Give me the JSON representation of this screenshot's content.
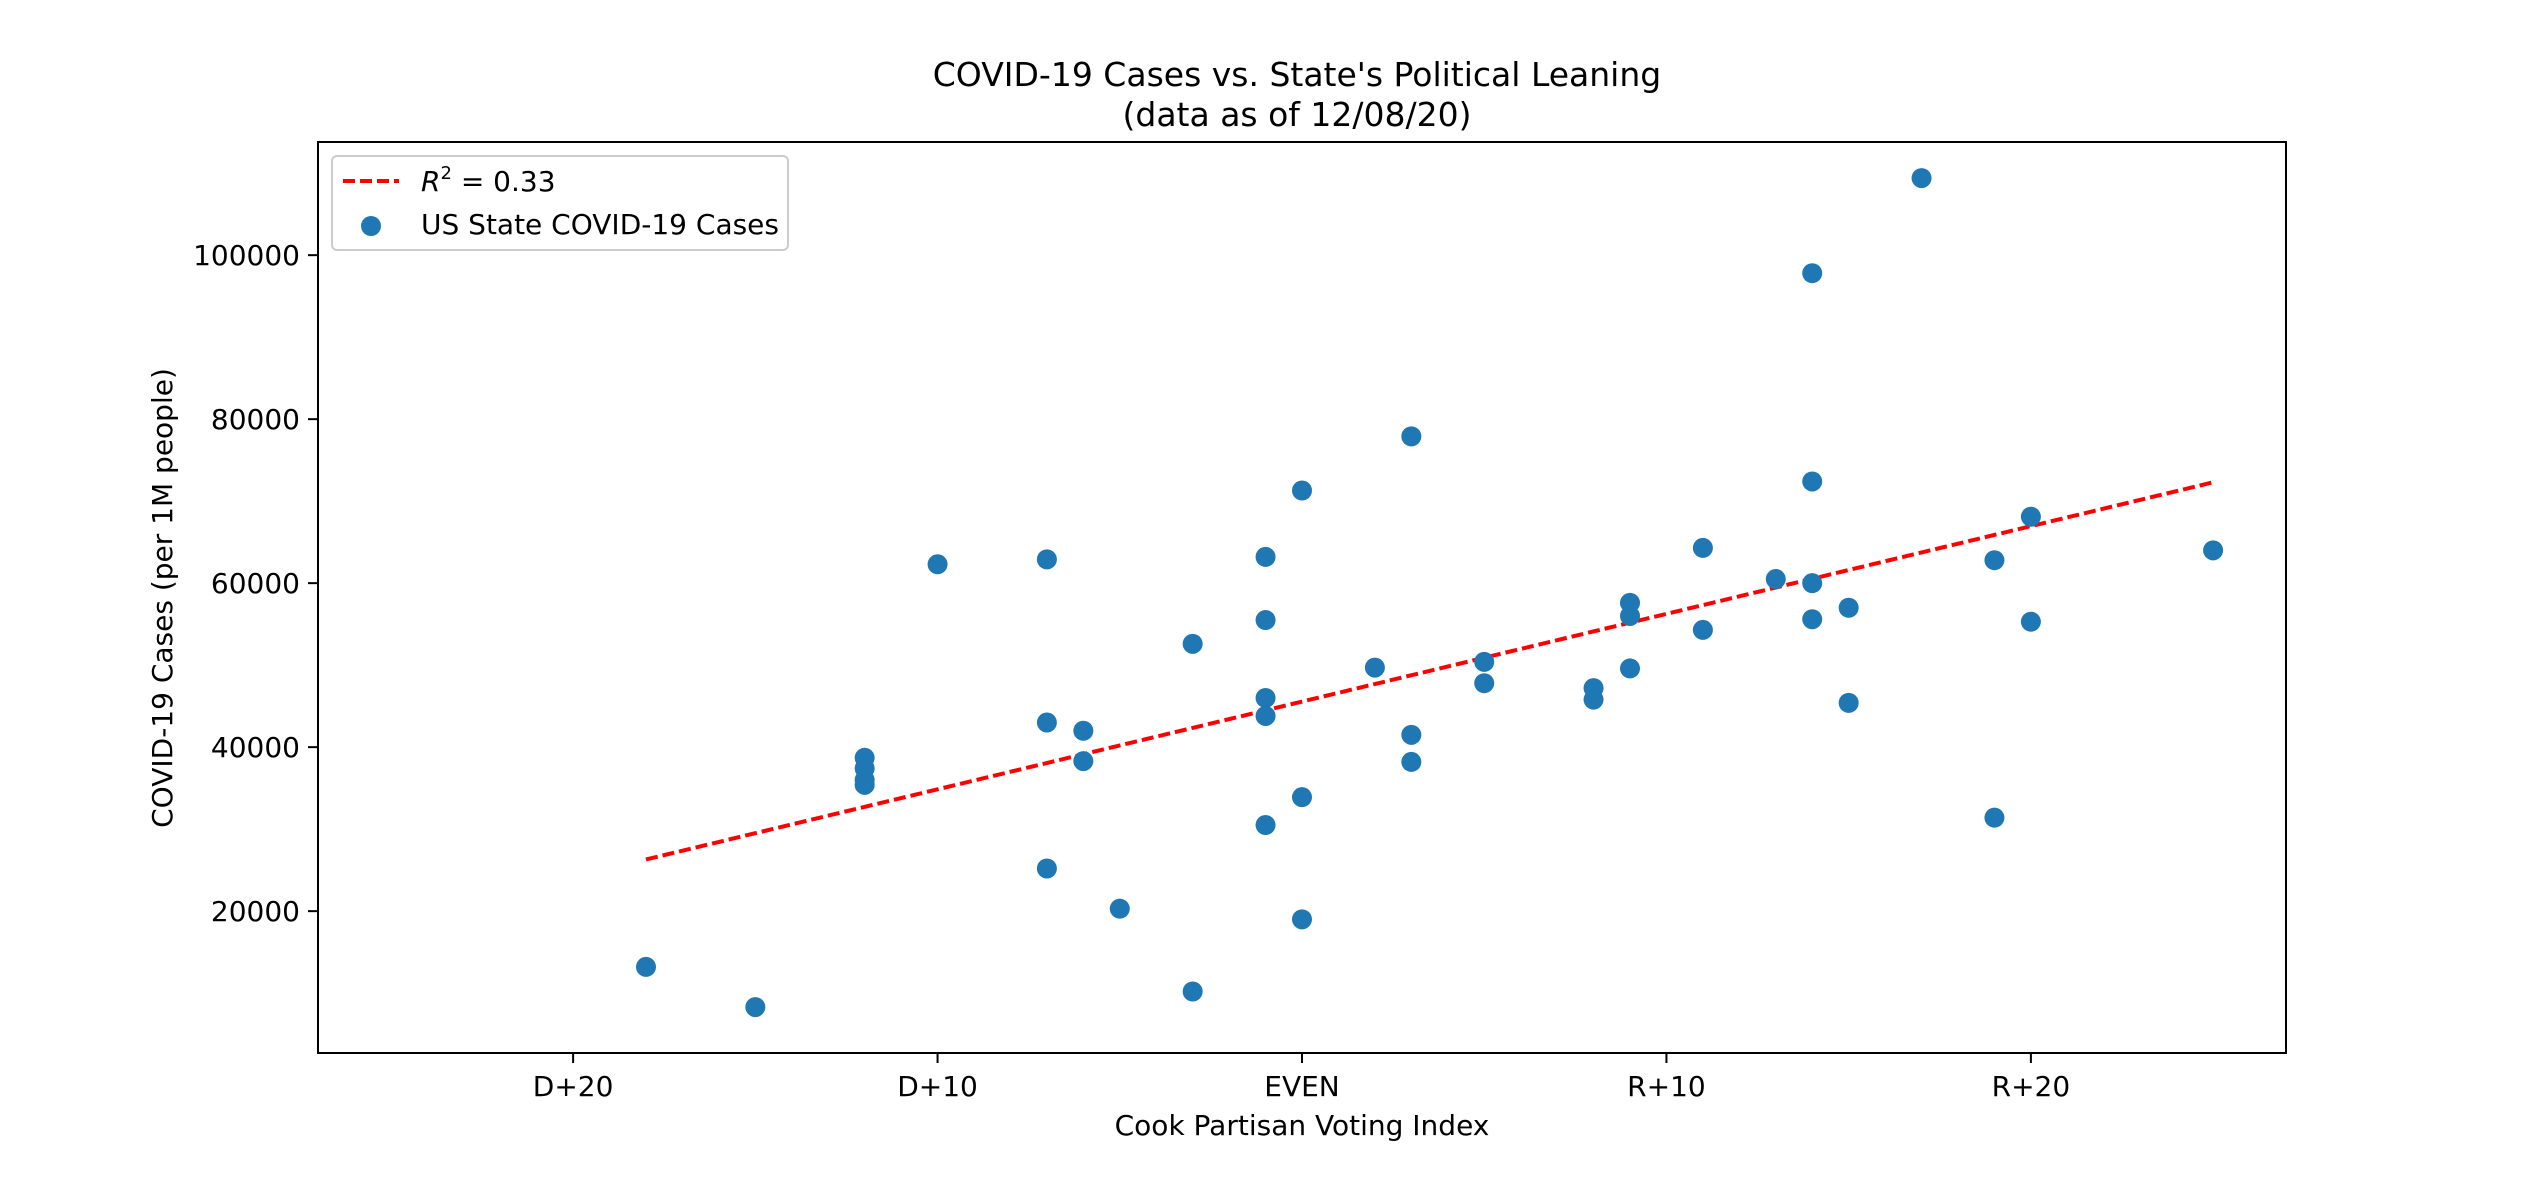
{
  "chart_data": {
    "type": "scatter",
    "title": "COVID-19 Cases vs. State's Political Leaning",
    "subtitle": "(data as of 12/08/20)",
    "xlabel": "Cook Partisan Voting Index",
    "ylabel": "COVID-19 Cases (per 1M people)",
    "xlim": [
      -27,
      27
    ],
    "ylim": [
      2700,
      113800
    ],
    "x_ticks": [
      {
        "value": -20,
        "label": "D+20"
      },
      {
        "value": -10,
        "label": "D+10"
      },
      {
        "value": 0,
        "label": "EVEN"
      },
      {
        "value": 10,
        "label": "R+10"
      },
      {
        "value": 20,
        "label": "R+20"
      }
    ],
    "y_ticks": [
      {
        "value": 20000,
        "label": "20000"
      },
      {
        "value": 40000,
        "label": "40000"
      },
      {
        "value": 60000,
        "label": "60000"
      },
      {
        "value": 80000,
        "label": "80000"
      },
      {
        "value": 100000,
        "label": "100000"
      }
    ],
    "grid": false,
    "legend_position": "top-left",
    "series": [
      {
        "name": "US State COVID-19 Cases",
        "kind": "scatter",
        "color": "#1f77b4",
        "points": [
          {
            "x": -18,
            "y": 13200
          },
          {
            "x": -15,
            "y": 8300
          },
          {
            "x": -12,
            "y": 38700
          },
          {
            "x": -12,
            "y": 37400
          },
          {
            "x": -12,
            "y": 36000
          },
          {
            "x": -12,
            "y": 35400
          },
          {
            "x": -10,
            "y": 62300
          },
          {
            "x": -7,
            "y": 62900
          },
          {
            "x": -7,
            "y": 43000
          },
          {
            "x": -7,
            "y": 25200
          },
          {
            "x": -6,
            "y": 42000
          },
          {
            "x": -6,
            "y": 38300
          },
          {
            "x": -5,
            "y": 20300
          },
          {
            "x": -3,
            "y": 52600
          },
          {
            "x": -3,
            "y": 10200
          },
          {
            "x": -1,
            "y": 63200
          },
          {
            "x": -1,
            "y": 55500
          },
          {
            "x": -1,
            "y": 46000
          },
          {
            "x": -1,
            "y": 43800
          },
          {
            "x": -1,
            "y": 30500
          },
          {
            "x": 0,
            "y": 71300
          },
          {
            "x": 0,
            "y": 33900
          },
          {
            "x": 0,
            "y": 19000
          },
          {
            "x": 2,
            "y": 49700
          },
          {
            "x": 3,
            "y": 77900
          },
          {
            "x": 3,
            "y": 41500
          },
          {
            "x": 3,
            "y": 38200
          },
          {
            "x": 5,
            "y": 50400
          },
          {
            "x": 5,
            "y": 47800
          },
          {
            "x": 8,
            "y": 47200
          },
          {
            "x": 8,
            "y": 45800
          },
          {
            "x": 9,
            "y": 57600
          },
          {
            "x": 9,
            "y": 56000
          },
          {
            "x": 9,
            "y": 49600
          },
          {
            "x": 11,
            "y": 64300
          },
          {
            "x": 11,
            "y": 54300
          },
          {
            "x": 13,
            "y": 60500
          },
          {
            "x": 14,
            "y": 97800
          },
          {
            "x": 14,
            "y": 72400
          },
          {
            "x": 14,
            "y": 60000
          },
          {
            "x": 14,
            "y": 55600
          },
          {
            "x": 15,
            "y": 57000
          },
          {
            "x": 15,
            "y": 45400
          },
          {
            "x": 17,
            "y": 109400
          },
          {
            "x": 19,
            "y": 62800
          },
          {
            "x": 19,
            "y": 31400
          },
          {
            "x": 20,
            "y": 68100
          },
          {
            "x": 20,
            "y": 55300
          },
          {
            "x": 25,
            "y": 64000
          }
        ]
      },
      {
        "name": "$R^2$ = 0.33",
        "legend_main": "R",
        "legend_sup": "2",
        "legend_rest": " = 0.33",
        "kind": "fit-line",
        "color": "#ff0000",
        "style": "dashed",
        "points": [
          {
            "x": -18,
            "y": 26300
          },
          {
            "x": 25,
            "y": 72300
          }
        ]
      }
    ]
  }
}
